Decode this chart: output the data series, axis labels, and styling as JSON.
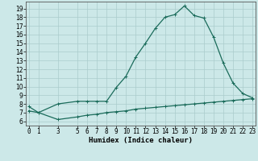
{
  "xlabel": "Humidex (Indice chaleur)",
  "bg_color": "#cce8e8",
  "grid_color": "#aacccc",
  "line_color": "#1a6b5a",
  "upper_x": [
    0,
    1,
    3,
    5,
    6,
    7,
    8,
    9,
    10,
    11,
    12,
    13,
    14,
    15,
    16,
    17,
    18,
    19,
    20,
    21,
    22,
    23
  ],
  "upper_y": [
    7.7,
    7.0,
    8.0,
    8.3,
    8.3,
    8.3,
    8.3,
    9.9,
    11.2,
    13.4,
    15.0,
    16.7,
    18.0,
    18.3,
    19.3,
    18.2,
    17.9,
    15.7,
    12.7,
    10.4,
    9.2,
    8.7
  ],
  "lower_x": [
    0,
    1,
    3,
    5,
    6,
    7,
    8,
    9,
    10,
    11,
    12,
    13,
    14,
    15,
    16,
    17,
    18,
    19,
    20,
    21,
    22,
    23
  ],
  "lower_y": [
    7.2,
    7.0,
    6.2,
    6.5,
    6.7,
    6.8,
    7.0,
    7.1,
    7.2,
    7.4,
    7.5,
    7.6,
    7.7,
    7.8,
    7.9,
    8.0,
    8.1,
    8.2,
    8.3,
    8.4,
    8.5,
    8.6
  ],
  "xticks": [
    0,
    1,
    3,
    5,
    6,
    7,
    8,
    9,
    10,
    11,
    12,
    13,
    14,
    15,
    16,
    17,
    18,
    19,
    20,
    21,
    22,
    23
  ],
  "yticks": [
    6,
    7,
    8,
    9,
    10,
    11,
    12,
    13,
    14,
    15,
    16,
    17,
    18,
    19
  ],
  "ylim": [
    5.5,
    19.8
  ],
  "xlim": [
    -0.3,
    23.3
  ],
  "marker_size": 2.5,
  "line_width": 0.9,
  "tick_fontsize": 5.5,
  "label_fontsize": 6.5
}
